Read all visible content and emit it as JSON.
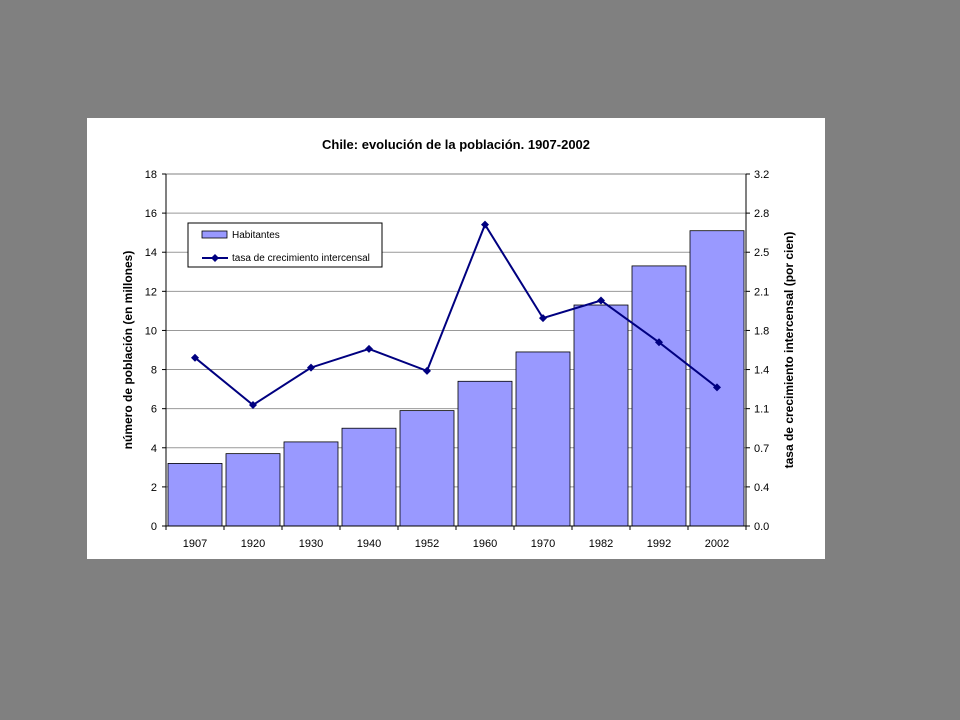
{
  "chart_data": {
    "type": "bar",
    "title": "Chile: evolución de la población. 1907-2002",
    "xlabel": "",
    "ylabel": "número de población (en millones)",
    "y2label": "tasa de crecimiento intercensal (por cien)",
    "categories": [
      "1907",
      "1920",
      "1930",
      "1940",
      "1952",
      "1960",
      "1970",
      "1982",
      "1992",
      "2002"
    ],
    "ylim": [
      0,
      18
    ],
    "yticks": [
      "0",
      "2",
      "4",
      "6",
      "8",
      "10",
      "12",
      "14",
      "16",
      "18"
    ],
    "y2lim": [
      0.0,
      3.2
    ],
    "y2ticks": [
      "0.0",
      "0.4",
      "0.7",
      "1.1",
      "1.4",
      "1.8",
      "2.1",
      "2.5",
      "2.8",
      "3.2"
    ],
    "grid": true,
    "legend_position": "top-left",
    "series": [
      {
        "name": "Habitantes",
        "type": "bar",
        "axis": "left",
        "color": "#9999ff",
        "values": [
          3.2,
          3.7,
          4.3,
          5.0,
          5.9,
          7.4,
          8.9,
          11.3,
          13.3,
          15.1
        ]
      },
      {
        "name": "tasa de crecimiento intercensal",
        "type": "line",
        "axis": "right",
        "color": "#000080",
        "values": [
          1.53,
          1.1,
          1.44,
          1.61,
          1.41,
          2.74,
          1.89,
          2.05,
          1.67,
          1.26
        ]
      }
    ]
  }
}
